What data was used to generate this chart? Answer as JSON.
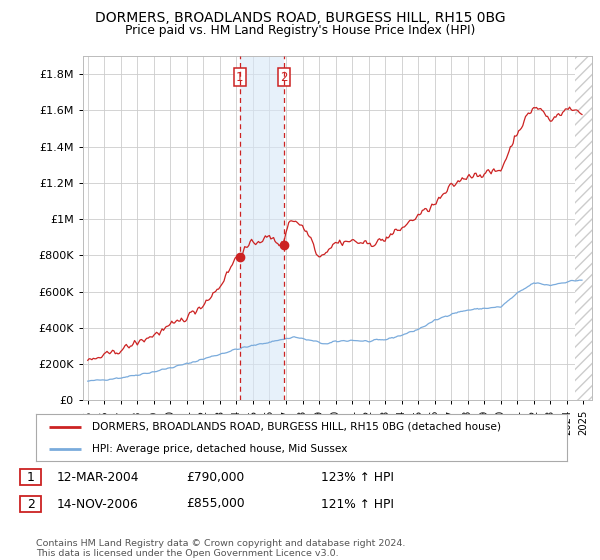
{
  "title": "DORMERS, BROADLANDS ROAD, BURGESS HILL, RH15 0BG",
  "subtitle": "Price paid vs. HM Land Registry's House Price Index (HPI)",
  "ylim": [
    0,
    1900000
  ],
  "yticks": [
    0,
    200000,
    400000,
    600000,
    800000,
    1000000,
    1200000,
    1400000,
    1600000,
    1800000
  ],
  "ytick_labels": [
    "£0",
    "£200K",
    "£400K",
    "£600K",
    "£800K",
    "£1M",
    "£1.2M",
    "£1.4M",
    "£1.6M",
    "£1.8M"
  ],
  "hpi_color": "#7aabdc",
  "price_color": "#cc2222",
  "t1_year": 2004.21,
  "t1_price": 790000,
  "t2_year": 2006.88,
  "t2_price": 855000,
  "legend_line1": "DORMERS, BROADLANDS ROAD, BURGESS HILL, RH15 0BG (detached house)",
  "legend_line2": "HPI: Average price, detached house, Mid Sussex",
  "table_row1": [
    "1",
    "12-MAR-2004",
    "£790,000",
    "123% ↑ HPI"
  ],
  "table_row2": [
    "2",
    "14-NOV-2006",
    "£855,000",
    "121% ↑ HPI"
  ],
  "footnote1": "Contains HM Land Registry data © Crown copyright and database right 2024.",
  "footnote2": "This data is licensed under the Open Government Licence v3.0.",
  "background_color": "#ffffff",
  "grid_color": "#cccccc",
  "hatch_color": "#cccccc",
  "shade_color": "#d8e8f8",
  "xlim_left": 1994.7,
  "xlim_right": 2025.5,
  "hatch_start": 2024.5
}
